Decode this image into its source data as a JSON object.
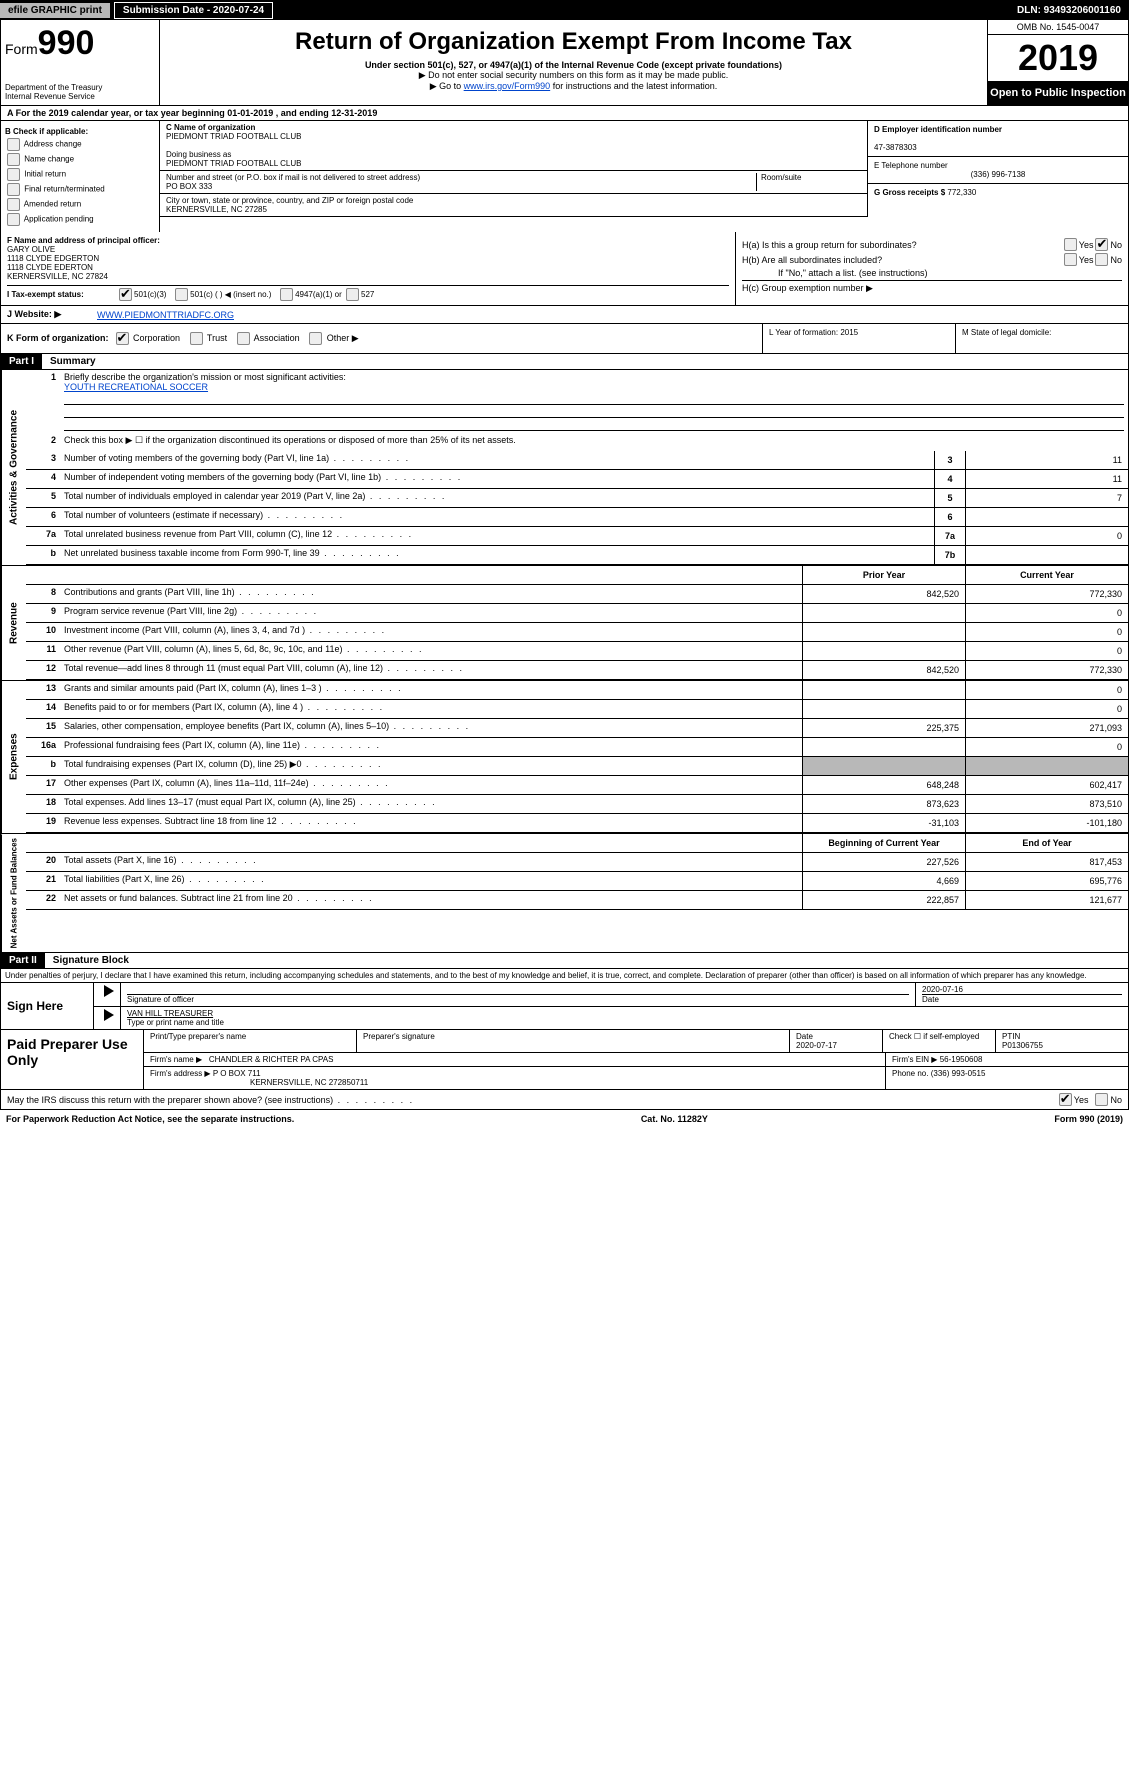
{
  "topbar": {
    "efile": "efile GRAPHIC print",
    "submission_label": "Submission Date - 2020-07-24",
    "dln": "DLN: 93493206001160"
  },
  "header": {
    "form_prefix": "Form",
    "form_number": "990",
    "dept": "Department of the Treasury\nInternal Revenue Service",
    "title": "Return of Organization Exempt From Income Tax",
    "sub1": "Under section 501(c), 527, or 4947(a)(1) of the Internal Revenue Code (except private foundations)",
    "sub2a": "▶ Do not enter social security numbers on this form as it may be made public.",
    "sub2b_prefix": "▶ Go to ",
    "sub2b_link": "www.irs.gov/Form990",
    "sub2b_suffix": " for instructions and the latest information.",
    "omb": "OMB No. 1545-0047",
    "year": "2019",
    "open_public": "Open to Public Inspection"
  },
  "row_a": "A   For the 2019 calendar year, or tax year beginning 01-01-2019       , and ending 12-31-2019",
  "col_b": {
    "heading": "B Check if applicable:",
    "items": [
      "Address change",
      "Name change",
      "Initial return",
      "Final return/terminated",
      "Amended return",
      "Application pending"
    ]
  },
  "col_c": {
    "name_label": "C Name of organization",
    "name": "PIEDMONT TRIAD FOOTBALL CLUB",
    "dba_label": "Doing business as",
    "dba": "PIEDMONT TRIAD FOOTBALL CLUB",
    "street_label": "Number and street (or P.O. box if mail is not delivered to street address)",
    "street": "PO BOX 333",
    "room_label": "Room/suite",
    "city_label": "City or town, state or province, country, and ZIP or foreign postal code",
    "city": "KERNERSVILLE, NC  27285"
  },
  "col_d": {
    "d_label": "D Employer identification number",
    "d_value": "47-3878303",
    "e_label": "E Telephone number",
    "e_value": "(336) 996-7138",
    "g_label": "G Gross receipts $",
    "g_value": "772,330"
  },
  "col_f": {
    "label": "F  Name and address of principal officer:",
    "name": "GARY OLIVE",
    "addr1": "1118 CLYDE EDGERTON",
    "addr2": "1118 CLYDE EDERTON",
    "addr3": "KERNERSVILLE, NC  27824"
  },
  "col_h": {
    "ha": "H(a)   Is this a group return for subordinates?",
    "hb": "H(b)   Are all subordinates included?",
    "hb_note": "If \"No,\" attach a list. (see instructions)",
    "hc": "H(c)   Group exemption number ▶",
    "yes": "Yes",
    "no": "No"
  },
  "row_i": {
    "label": "I    Tax-exempt status:",
    "opts": [
      "501(c)(3)",
      "501(c) (  ) ◀ (insert no.)",
      "4947(a)(1) or",
      "527"
    ]
  },
  "row_j": {
    "label": "J   Website: ▶",
    "value": "WWW.PIEDMONTTRIADFC.ORG"
  },
  "row_k": {
    "label": "K Form of organization:",
    "opts": [
      "Corporation",
      "Trust",
      "Association",
      "Other ▶"
    ]
  },
  "row_l": {
    "label": "L Year of formation:",
    "value": "2015"
  },
  "row_m": {
    "label": "M State of legal domicile:"
  },
  "part1": {
    "header": "Part I",
    "title": "Summary",
    "line1_label": "Briefly describe the organization's mission or most significant activities:",
    "line1_value": "YOUTH RECREATIONAL SOCCER",
    "line2": "Check this box ▶ ☐  if the organization discontinued its operations or disposed of more than 25% of its net assets.",
    "sidetabs": {
      "gov": "Activities & Governance",
      "rev": "Revenue",
      "exp": "Expenses",
      "net": "Net Assets or Fund Balances"
    },
    "col_prior": "Prior Year",
    "col_current": "Current Year",
    "col_boy": "Beginning of Current Year",
    "col_eoy": "End of Year",
    "gov_rows": [
      {
        "n": "3",
        "d": "Number of voting members of the governing body (Part VI, line 1a)",
        "box": "3",
        "v": "11"
      },
      {
        "n": "4",
        "d": "Number of independent voting members of the governing body (Part VI, line 1b)",
        "box": "4",
        "v": "11"
      },
      {
        "n": "5",
        "d": "Total number of individuals employed in calendar year 2019 (Part V, line 2a)",
        "box": "5",
        "v": "7"
      },
      {
        "n": "6",
        "d": "Total number of volunteers (estimate if necessary)",
        "box": "6",
        "v": ""
      },
      {
        "n": "7a",
        "d": "Total unrelated business revenue from Part VIII, column (C), line 12",
        "box": "7a",
        "v": "0"
      },
      {
        "n": "b",
        "d": "Net unrelated business taxable income from Form 990-T, line 39",
        "box": "7b",
        "v": ""
      }
    ],
    "rev_rows": [
      {
        "n": "8",
        "d": "Contributions and grants (Part VIII, line 1h)",
        "p": "842,520",
        "c": "772,330"
      },
      {
        "n": "9",
        "d": "Program service revenue (Part VIII, line 2g)",
        "p": "",
        "c": "0"
      },
      {
        "n": "10",
        "d": "Investment income (Part VIII, column (A), lines 3, 4, and 7d )",
        "p": "",
        "c": "0"
      },
      {
        "n": "11",
        "d": "Other revenue (Part VIII, column (A), lines 5, 6d, 8c, 9c, 10c, and 11e)",
        "p": "",
        "c": "0"
      },
      {
        "n": "12",
        "d": "Total revenue—add lines 8 through 11 (must equal Part VIII, column (A), line 12)",
        "p": "842,520",
        "c": "772,330"
      }
    ],
    "exp_rows": [
      {
        "n": "13",
        "d": "Grants and similar amounts paid (Part IX, column (A), lines 1–3 )",
        "p": "",
        "c": "0"
      },
      {
        "n": "14",
        "d": "Benefits paid to or for members (Part IX, column (A), line 4 )",
        "p": "",
        "c": "0"
      },
      {
        "n": "15",
        "d": "Salaries, other compensation, employee benefits (Part IX, column (A), lines 5–10)",
        "p": "225,375",
        "c": "271,093"
      },
      {
        "n": "16a",
        "d": "Professional fundraising fees (Part IX, column (A), line 11e)",
        "p": "",
        "c": "0"
      },
      {
        "n": "b",
        "d": "Total fundraising expenses (Part IX, column (D), line 25) ▶0",
        "p": "shaded",
        "c": "shaded"
      },
      {
        "n": "17",
        "d": "Other expenses (Part IX, column (A), lines 11a–11d, 11f–24e)",
        "p": "648,248",
        "c": "602,417"
      },
      {
        "n": "18",
        "d": "Total expenses. Add lines 13–17 (must equal Part IX, column (A), line 25)",
        "p": "873,623",
        "c": "873,510"
      },
      {
        "n": "19",
        "d": "Revenue less expenses. Subtract line 18 from line 12",
        "p": "-31,103",
        "c": "-101,180"
      }
    ],
    "net_rows": [
      {
        "n": "20",
        "d": "Total assets (Part X, line 16)",
        "p": "227,526",
        "c": "817,453"
      },
      {
        "n": "21",
        "d": "Total liabilities (Part X, line 26)",
        "p": "4,669",
        "c": "695,776"
      },
      {
        "n": "22",
        "d": "Net assets or fund balances. Subtract line 21 from line 20",
        "p": "222,857",
        "c": "121,677"
      }
    ]
  },
  "part2": {
    "header": "Part II",
    "title": "Signature Block",
    "disclaimer": "Under penalties of perjury, I declare that I have examined this return, including accompanying schedules and statements, and to the best of my knowledge and belief, it is true, correct, and complete. Declaration of preparer (other than officer) is based on all information of which preparer has any knowledge.",
    "sign_here": "Sign Here",
    "sig_officer": "Signature of officer",
    "sig_date": "2020-07-16",
    "date_label": "Date",
    "officer_name": "VAN HILL TREASURER",
    "officer_name_label": "Type or print name and title",
    "paid": "Paid Preparer Use Only",
    "prep_name_label": "Print/Type preparer's name",
    "prep_sig_label": "Preparer's signature",
    "prep_date_label": "Date",
    "prep_date": "2020-07-17",
    "check_label": "Check ☐ if self-employed",
    "ptin_label": "PTIN",
    "ptin": "P01306755",
    "firm_name_label": "Firm's name    ▶",
    "firm_name": "CHANDLER & RICHTER PA CPAS",
    "firm_ein_label": "Firm's EIN ▶",
    "firm_ein": "56-1950608",
    "firm_addr_label": "Firm's address ▶",
    "firm_addr": "P O BOX 711",
    "firm_city": "KERNERSVILLE, NC  272850711",
    "phone_label": "Phone no.",
    "phone": "(336) 993-0515",
    "discuss": "May the IRS discuss this return with the preparer shown above? (see instructions)",
    "yes": "Yes",
    "no": "No"
  },
  "footer": {
    "left": "For Paperwork Reduction Act Notice, see the separate instructions.",
    "center": "Cat. No. 11282Y",
    "right": "Form 990 (2019)"
  }
}
